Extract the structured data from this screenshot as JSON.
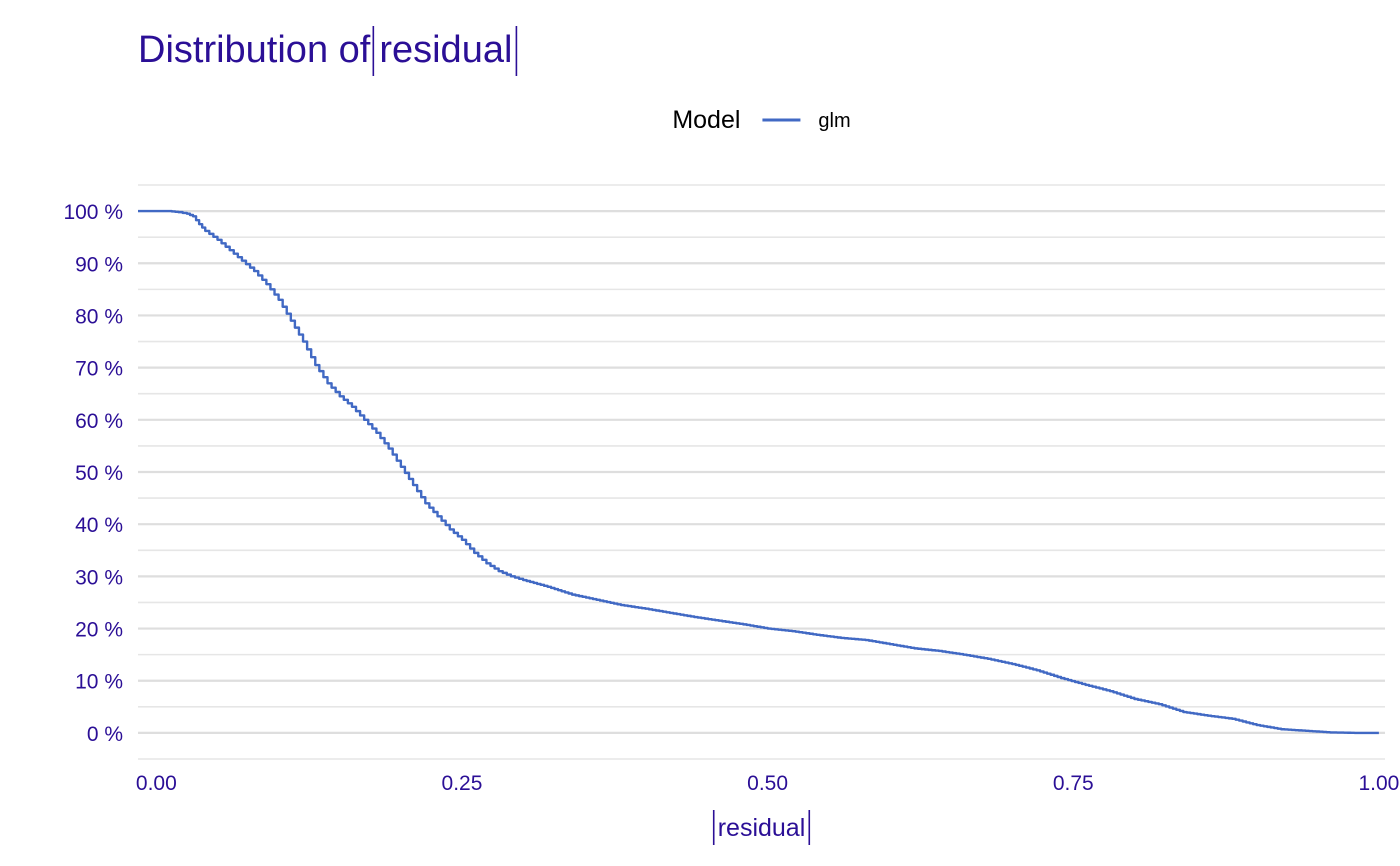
{
  "chart_data": {
    "type": "line",
    "title": "Distribution of ",
    "title_expression": "residual",
    "xlabel": "residual",
    "ylabel": "",
    "xlim": [
      -0.015,
      1.005
    ],
    "ylim": [
      -0.05,
      1.05
    ],
    "x_ticks": [
      0,
      0.25,
      0.5,
      0.75,
      1.0
    ],
    "x_tick_labels": [
      "0.00",
      "0.25",
      "0.50",
      "0.75",
      "1.00"
    ],
    "y_ticks": [
      0,
      0.1,
      0.2,
      0.3,
      0.4,
      0.5,
      0.6,
      0.7,
      0.8,
      0.9,
      1.0
    ],
    "y_tick_labels": [
      "0 %",
      "10 %",
      "20 %",
      "30 %",
      "40 %",
      "50 %",
      "60 %",
      "70 %",
      "80 %",
      "90 %",
      "100 %"
    ],
    "grid": true,
    "legend": {
      "title": "Model",
      "placement": "top"
    },
    "series": [
      {
        "name": "glm",
        "color": "#4169c4",
        "points": [
          [
            -0.015,
            1.0
          ],
          [
            0.0,
            1.0
          ],
          [
            0.01,
            1.0
          ],
          [
            0.018,
            0.998
          ],
          [
            0.025,
            0.995
          ],
          [
            0.03,
            0.99
          ],
          [
            0.035,
            0.975
          ],
          [
            0.04,
            0.962
          ],
          [
            0.05,
            0.945
          ],
          [
            0.06,
            0.925
          ],
          [
            0.07,
            0.905
          ],
          [
            0.08,
            0.885
          ],
          [
            0.09,
            0.86
          ],
          [
            0.1,
            0.83
          ],
          [
            0.11,
            0.79
          ],
          [
            0.12,
            0.75
          ],
          [
            0.13,
            0.705
          ],
          [
            0.14,
            0.67
          ],
          [
            0.15,
            0.645
          ],
          [
            0.16,
            0.625
          ],
          [
            0.17,
            0.6
          ],
          [
            0.18,
            0.575
          ],
          [
            0.19,
            0.545
          ],
          [
            0.2,
            0.51
          ],
          [
            0.21,
            0.475
          ],
          [
            0.22,
            0.44
          ],
          [
            0.23,
            0.415
          ],
          [
            0.24,
            0.39
          ],
          [
            0.25,
            0.37
          ],
          [
            0.26,
            0.345
          ],
          [
            0.27,
            0.325
          ],
          [
            0.28,
            0.31
          ],
          [
            0.29,
            0.3
          ],
          [
            0.3,
            0.293
          ],
          [
            0.32,
            0.28
          ],
          [
            0.34,
            0.265
          ],
          [
            0.36,
            0.255
          ],
          [
            0.38,
            0.245
          ],
          [
            0.4,
            0.238
          ],
          [
            0.42,
            0.23
          ],
          [
            0.44,
            0.222
          ],
          [
            0.46,
            0.215
          ],
          [
            0.48,
            0.208
          ],
          [
            0.5,
            0.2
          ],
          [
            0.52,
            0.195
          ],
          [
            0.54,
            0.188
          ],
          [
            0.56,
            0.182
          ],
          [
            0.58,
            0.178
          ],
          [
            0.6,
            0.17
          ],
          [
            0.62,
            0.162
          ],
          [
            0.64,
            0.157
          ],
          [
            0.66,
            0.15
          ],
          [
            0.68,
            0.142
          ],
          [
            0.7,
            0.132
          ],
          [
            0.72,
            0.12
          ],
          [
            0.74,
            0.105
          ],
          [
            0.76,
            0.092
          ],
          [
            0.78,
            0.08
          ],
          [
            0.8,
            0.065
          ],
          [
            0.82,
            0.055
          ],
          [
            0.84,
            0.04
          ],
          [
            0.86,
            0.033
          ],
          [
            0.88,
            0.027
          ],
          [
            0.9,
            0.015
          ],
          [
            0.92,
            0.007
          ],
          [
            0.94,
            0.004
          ],
          [
            0.96,
            0.001
          ],
          [
            0.98,
            0.0
          ],
          [
            1.0,
            0.0
          ]
        ]
      }
    ]
  }
}
